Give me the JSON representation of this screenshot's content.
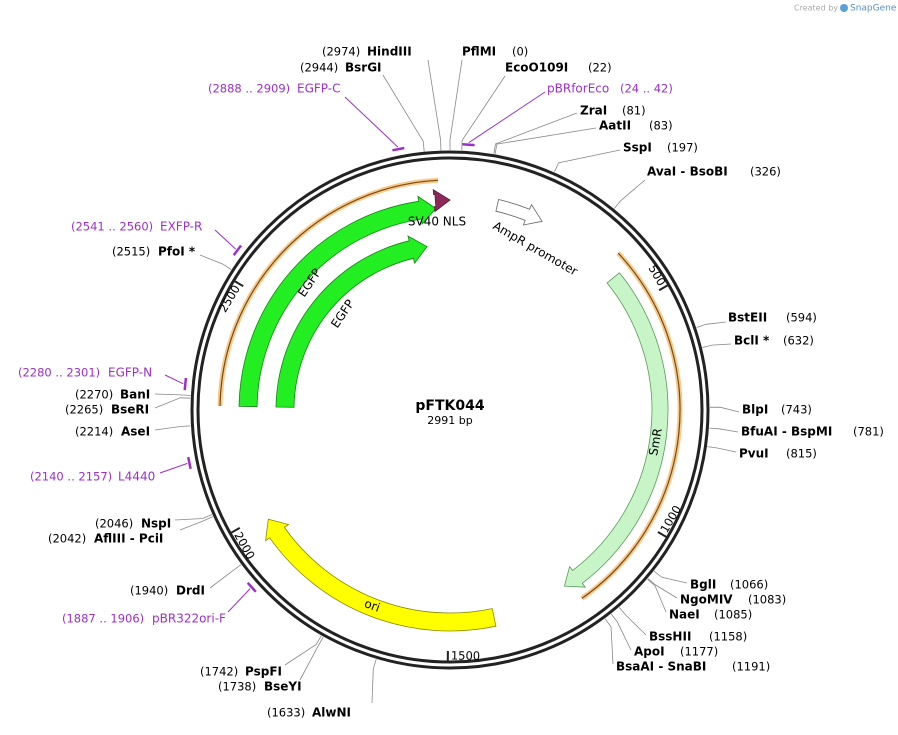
{
  "header": {
    "credit": "Created by",
    "brand": "SnapGene"
  },
  "map": {
    "name": "pFTK044",
    "size": "2991 bp",
    "ticks": [
      "500",
      "1000",
      "1500",
      "2000",
      "2500"
    ]
  },
  "features": [
    "SV40 NLS",
    "AmpR promoter",
    "EGFP",
    "EGFP",
    "SmR",
    "ori"
  ],
  "sites": [
    {
      "name": "HindIII",
      "position": "(2974)"
    },
    {
      "name": "BsrGI",
      "position": "(2944)"
    },
    {
      "name": "PflMI",
      "position": "(0)"
    },
    {
      "name": "EcoO109I",
      "position": "(22)"
    },
    {
      "name": "ZraI",
      "position": "(81)"
    },
    {
      "name": "AatII",
      "position": "(83)"
    },
    {
      "name": "SspI",
      "position": "(197)"
    },
    {
      "name": "AvaI - BsoBI",
      "position": "(326)"
    },
    {
      "name": "BstEII",
      "position": "(594)"
    },
    {
      "name": "BclI *",
      "position": "(632)"
    },
    {
      "name": "BlpI",
      "position": "(743)"
    },
    {
      "name": "BfuAI - BspMI",
      "position": "(781)"
    },
    {
      "name": "PvuI",
      "position": "(815)"
    },
    {
      "name": "BglI",
      "position": "(1066)"
    },
    {
      "name": "NgoMIV",
      "position": "(1083)"
    },
    {
      "name": "NaeI",
      "position": "(1085)"
    },
    {
      "name": "BssHII",
      "position": "(1158)"
    },
    {
      "name": "ApoI",
      "position": "(1177)"
    },
    {
      "name": "BsaAI - SnaBI",
      "position": "(1191)"
    },
    {
      "name": "AlwNI",
      "position": "(1633)"
    },
    {
      "name": "BseYI",
      "position": "(1738)"
    },
    {
      "name": "PspFI",
      "position": "(1742)"
    },
    {
      "name": "DrdI",
      "position": "(1940)"
    },
    {
      "name": "AflIII - PciI",
      "position": "(2042)"
    },
    {
      "name": "NspI",
      "position": "(2046)"
    },
    {
      "name": "AseI",
      "position": "(2214)"
    },
    {
      "name": "BseRI",
      "position": "(2265)"
    },
    {
      "name": "BanI",
      "position": "(2270)"
    },
    {
      "name": "PfoI *",
      "position": "(2515)"
    }
  ],
  "primers": [
    {
      "name": "EGFP-C",
      "range": "(2888 .. 2909)"
    },
    {
      "name": "pBRforEco",
      "range": "(24 .. 42)"
    },
    {
      "name": "EXFP-R",
      "range": "(2541 .. 2560)"
    },
    {
      "name": "EGFP-N",
      "range": "(2280 .. 2301)"
    },
    {
      "name": "L4440",
      "range": "(2140 .. 2157)"
    },
    {
      "name": "pBR322ori-F",
      "range": "(1887 .. 1906)"
    }
  ]
}
